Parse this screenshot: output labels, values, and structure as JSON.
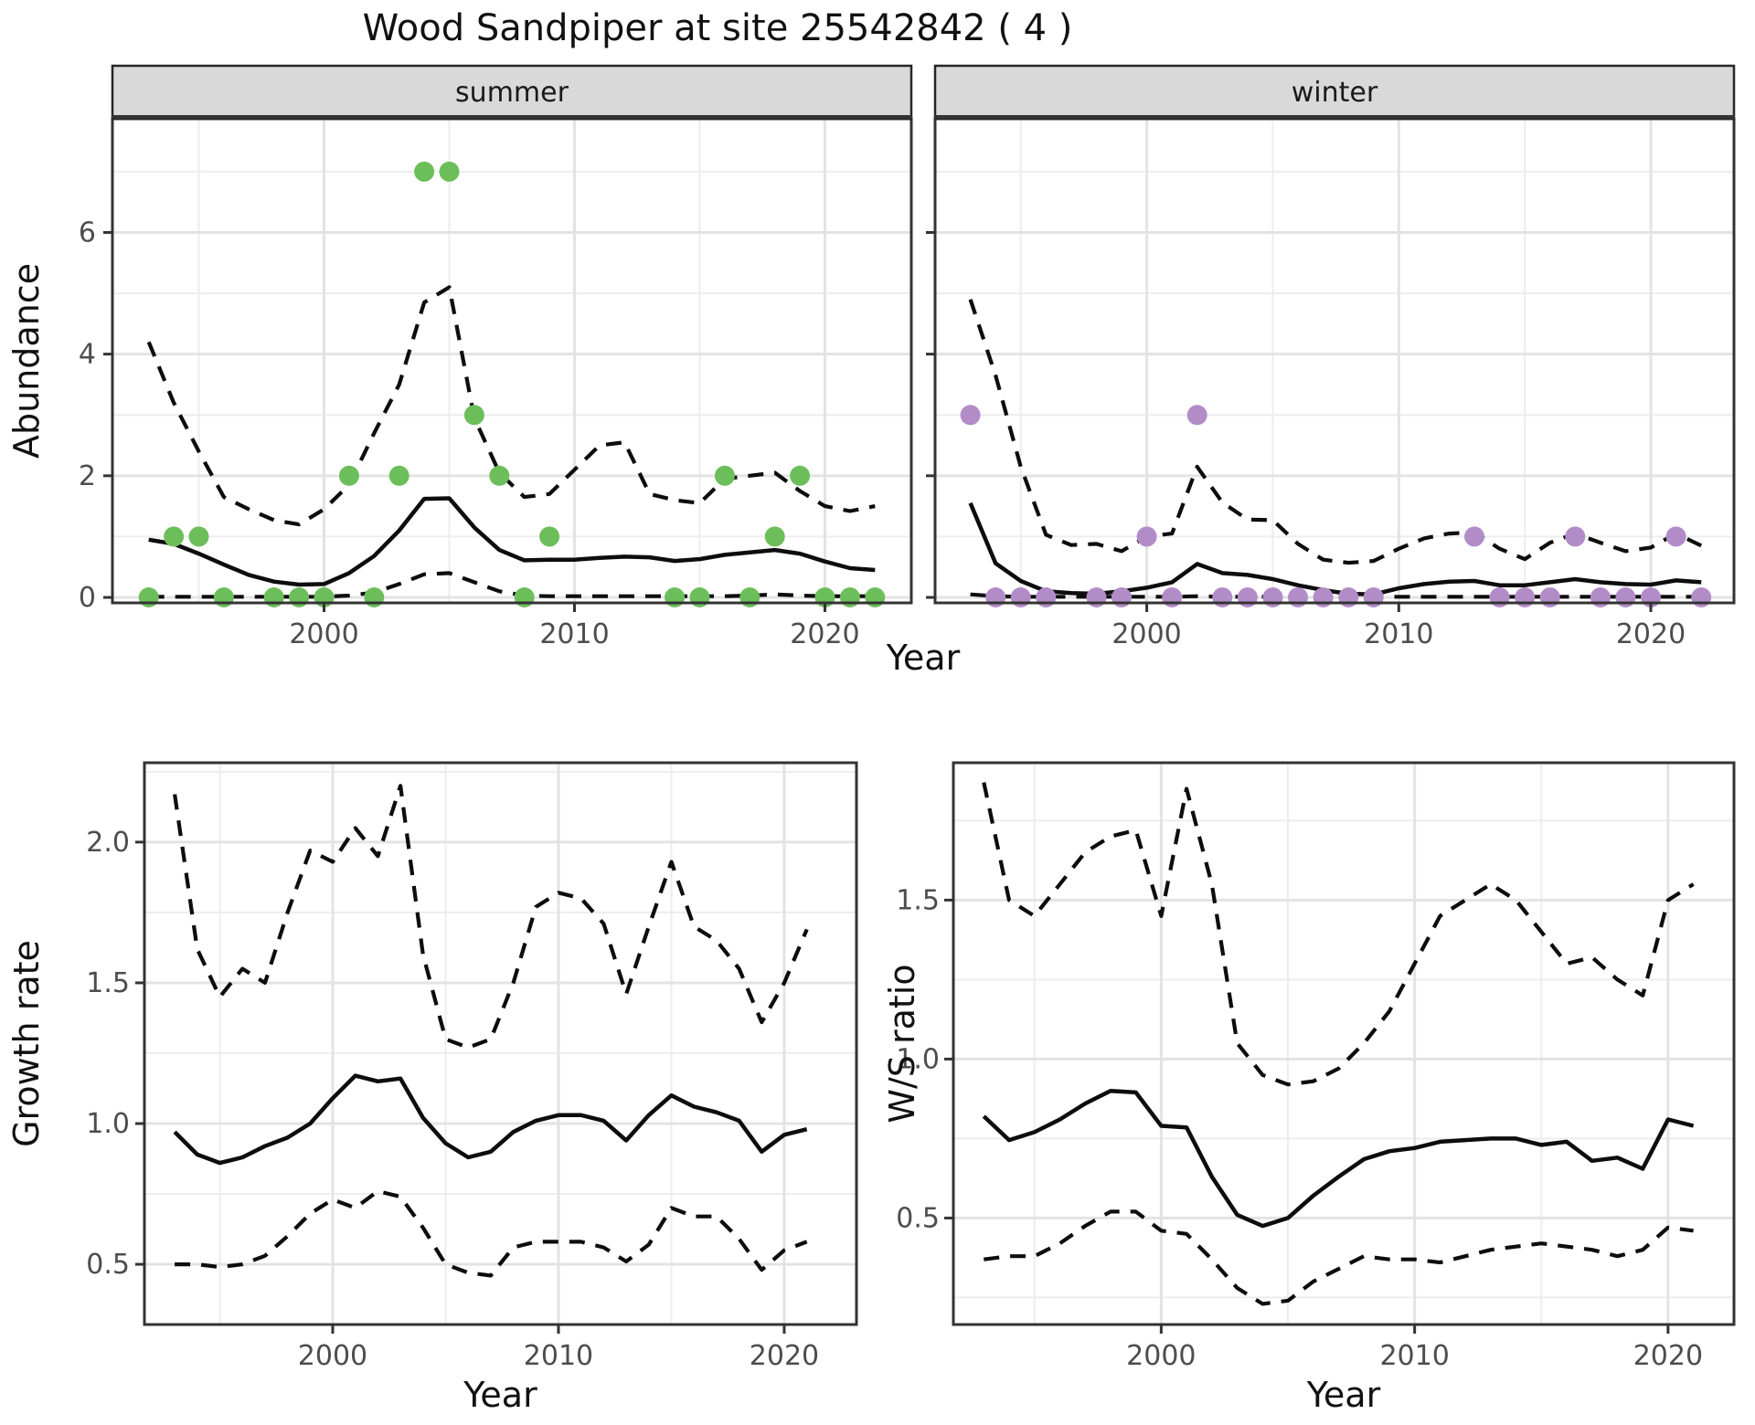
{
  "title": "Wood Sandpiper at site 25542842 ( 4 )",
  "top_row_xlabel": "Year",
  "colors": {
    "summer_points": "#6CBE5B",
    "winter_points": "#B28CC7",
    "line": "#0D0D0D",
    "grid_major": "#E3E3E3",
    "grid_minor": "#EDEDED",
    "strip_bg": "#D9D9D9",
    "strip_border": "#262626",
    "panel_border": "#333333",
    "tick_text": "#4D4D4D",
    "axis_title_text": "#111111"
  },
  "chart_data": [
    {
      "type": "line",
      "facet": "summer",
      "xlabel": "Year",
      "ylabel": "Abundance",
      "x_ticks": [
        2000,
        2010,
        2020
      ],
      "x_tick_labels": [
        "2000",
        "2010",
        "2020"
      ],
      "x_minor": [
        1995,
        2005,
        2015
      ],
      "y_ticks": [
        0,
        2,
        4,
        6
      ],
      "y_tick_labels": [
        "0",
        "2",
        "4",
        "6"
      ],
      "y_minor": [
        1,
        3,
        5,
        7
      ],
      "xlim": [
        1991.55,
        2023.45
      ],
      "ylim": [
        -0.09,
        7.87
      ],
      "x": [
        1993,
        1994,
        1995,
        1996,
        1997,
        1998,
        1999,
        2000,
        2001,
        2002,
        2003,
        2004,
        2005,
        2006,
        2007,
        2008,
        2009,
        2010,
        2011,
        2012,
        2013,
        2014,
        2015,
        2016,
        2017,
        2018,
        2019,
        2020,
        2021,
        2022
      ],
      "series": [
        {
          "name": "median",
          "style": "solid",
          "values": [
            0.95,
            0.88,
            0.72,
            0.54,
            0.37,
            0.26,
            0.21,
            0.22,
            0.4,
            0.68,
            1.1,
            1.62,
            1.63,
            1.15,
            0.78,
            0.61,
            0.62,
            0.62,
            0.65,
            0.67,
            0.66,
            0.6,
            0.63,
            0.7,
            0.74,
            0.78,
            0.72,
            0.59,
            0.48,
            0.45
          ]
        },
        {
          "name": "upper_ci",
          "style": "dashed",
          "values": [
            4.2,
            3.2,
            2.4,
            1.65,
            1.45,
            1.27,
            1.2,
            1.45,
            1.85,
            2.7,
            3.5,
            4.85,
            5.1,
            2.95,
            2.05,
            1.65,
            1.7,
            2.1,
            2.5,
            2.55,
            1.7,
            1.6,
            1.55,
            1.95,
            2.0,
            2.05,
            1.75,
            1.5,
            1.42,
            1.5
          ]
        },
        {
          "name": "lower_ci",
          "style": "dashed",
          "values": [
            0.01,
            0.01,
            0.01,
            0.01,
            0.01,
            0.01,
            0.01,
            0.01,
            0.03,
            0.08,
            0.22,
            0.38,
            0.4,
            0.25,
            0.1,
            0.03,
            0.02,
            0.02,
            0.02,
            0.02,
            0.02,
            0.02,
            0.02,
            0.02,
            0.03,
            0.05,
            0.03,
            0.02,
            0.02,
            0.02
          ]
        }
      ],
      "points": {
        "name": "observed_counts",
        "color_key": "summer_points",
        "xy": [
          [
            1993,
            0
          ],
          [
            1994,
            1
          ],
          [
            1995,
            1
          ],
          [
            1996,
            0
          ],
          [
            1998,
            0
          ],
          [
            1999,
            0
          ],
          [
            2000,
            0
          ],
          [
            2001,
            2
          ],
          [
            2002,
            0
          ],
          [
            2003,
            2
          ],
          [
            2004,
            7
          ],
          [
            2005,
            7
          ],
          [
            2006,
            3
          ],
          [
            2007,
            2
          ],
          [
            2008,
            0
          ],
          [
            2009,
            1
          ],
          [
            2014,
            0
          ],
          [
            2015,
            0
          ],
          [
            2016,
            2
          ],
          [
            2017,
            0
          ],
          [
            2018,
            1
          ],
          [
            2019,
            2
          ],
          [
            2020,
            0
          ],
          [
            2021,
            0
          ],
          [
            2022,
            0
          ]
        ]
      }
    },
    {
      "type": "line",
      "facet": "winter",
      "xlabel": "Year",
      "ylabel": "Abundance",
      "x_ticks": [
        2000,
        2010,
        2020
      ],
      "x_tick_labels": [
        "2000",
        "2010",
        "2020"
      ],
      "x_minor": [
        1995,
        2005,
        2015
      ],
      "y_ticks": [
        0,
        2,
        4,
        6
      ],
      "y_tick_labels": [
        "0",
        "2",
        "4",
        "6"
      ],
      "y_minor": [
        1,
        3,
        5,
        7
      ],
      "xlim": [
        1991.6,
        2023.3
      ],
      "ylim": [
        -0.09,
        7.87
      ],
      "x": [
        1993,
        1994,
        1995,
        1996,
        1997,
        1998,
        1999,
        2000,
        2001,
        2002,
        2003,
        2004,
        2005,
        2006,
        2007,
        2008,
        2009,
        2010,
        2011,
        2012,
        2013,
        2014,
        2015,
        2016,
        2017,
        2018,
        2019,
        2020,
        2021,
        2022
      ],
      "series": [
        {
          "name": "median",
          "style": "solid",
          "values": [
            1.55,
            0.56,
            0.27,
            0.1,
            0.07,
            0.06,
            0.1,
            0.16,
            0.25,
            0.55,
            0.4,
            0.37,
            0.3,
            0.2,
            0.12,
            0.06,
            0.05,
            0.15,
            0.22,
            0.26,
            0.27,
            0.2,
            0.2,
            0.25,
            0.3,
            0.25,
            0.22,
            0.21,
            0.28,
            0.25
          ]
        },
        {
          "name": "upper_ci",
          "style": "dashed",
          "values": [
            4.9,
            3.65,
            2.15,
            1.03,
            0.86,
            0.88,
            0.76,
            1.0,
            1.05,
            2.15,
            1.56,
            1.28,
            1.27,
            0.88,
            0.62,
            0.57,
            0.6,
            0.8,
            0.97,
            1.05,
            1.07,
            0.8,
            0.63,
            0.9,
            1.05,
            0.9,
            0.76,
            0.82,
            1.05,
            0.85
          ]
        },
        {
          "name": "lower_ci",
          "style": "dashed",
          "values": [
            0.05,
            0.02,
            0.01,
            0.01,
            0.01,
            0.01,
            0.01,
            0.01,
            0.01,
            0.02,
            0.01,
            0.01,
            0.01,
            0.01,
            0.01,
            0.01,
            0.01,
            0.01,
            0.01,
            0.01,
            0.01,
            0.01,
            0.01,
            0.01,
            0.01,
            0.01,
            0.01,
            0.01,
            0.01,
            0.01
          ]
        }
      ],
      "points": {
        "name": "observed_counts",
        "color_key": "winter_points",
        "xy": [
          [
            1993,
            3
          ],
          [
            1994,
            0
          ],
          [
            1995,
            0
          ],
          [
            1996,
            0
          ],
          [
            1998,
            0
          ],
          [
            1999,
            0
          ],
          [
            2000,
            1
          ],
          [
            2001,
            0
          ],
          [
            2002,
            3
          ],
          [
            2003,
            0
          ],
          [
            2004,
            0
          ],
          [
            2005,
            0
          ],
          [
            2006,
            0
          ],
          [
            2007,
            0
          ],
          [
            2008,
            0
          ],
          [
            2009,
            0
          ],
          [
            2013,
            1
          ],
          [
            2014,
            0
          ],
          [
            2015,
            0
          ],
          [
            2016,
            0
          ],
          [
            2017,
            1
          ],
          [
            2018,
            0
          ],
          [
            2019,
            0
          ],
          [
            2020,
            0
          ],
          [
            2021,
            1
          ],
          [
            2022,
            0
          ]
        ]
      }
    },
    {
      "type": "line",
      "facet": null,
      "xlabel": "Year",
      "ylabel": "Growth rate",
      "x_ticks": [
        2000,
        2010,
        2020
      ],
      "x_tick_labels": [
        "2000",
        "2010",
        "2020"
      ],
      "x_minor": [
        1995,
        2005,
        2015
      ],
      "y_ticks": [
        0.5,
        1.0,
        1.5,
        2.0
      ],
      "y_tick_labels": [
        "0.5",
        "1.0",
        "1.5",
        "2.0"
      ],
      "y_minor": [
        0.75,
        1.25,
        1.75,
        2.25
      ],
      "xlim": [
        1991.66,
        2023.2
      ],
      "ylim": [
        0.286,
        2.282
      ],
      "x": [
        1993,
        1994,
        1995,
        1996,
        1997,
        1998,
        1999,
        2000,
        2001,
        2002,
        2003,
        2004,
        2005,
        2006,
        2007,
        2008,
        2009,
        2010,
        2011,
        2012,
        2013,
        2014,
        2015,
        2016,
        2017,
        2018,
        2019,
        2020,
        2021
      ],
      "series": [
        {
          "name": "median",
          "style": "solid",
          "values": [
            0.97,
            0.89,
            0.86,
            0.88,
            0.92,
            0.95,
            1.0,
            1.09,
            1.17,
            1.15,
            1.16,
            1.02,
            0.93,
            0.88,
            0.9,
            0.97,
            1.01,
            1.03,
            1.03,
            1.01,
            0.94,
            1.03,
            1.1,
            1.06,
            1.04,
            1.01,
            0.9,
            0.96,
            0.98
          ]
        },
        {
          "name": "upper_ci",
          "style": "dashed",
          "values": [
            2.17,
            1.62,
            1.45,
            1.55,
            1.5,
            1.75,
            1.97,
            1.93,
            2.05,
            1.95,
            2.2,
            1.6,
            1.3,
            1.27,
            1.3,
            1.5,
            1.77,
            1.82,
            1.8,
            1.71,
            1.46,
            1.7,
            1.93,
            1.7,
            1.65,
            1.55,
            1.36,
            1.5,
            1.69
          ]
        },
        {
          "name": "lower_ci",
          "style": "dashed",
          "values": [
            0.5,
            0.5,
            0.49,
            0.5,
            0.53,
            0.6,
            0.68,
            0.73,
            0.7,
            0.76,
            0.74,
            0.63,
            0.5,
            0.47,
            0.46,
            0.56,
            0.58,
            0.58,
            0.58,
            0.56,
            0.51,
            0.57,
            0.7,
            0.67,
            0.67,
            0.59,
            0.48,
            0.55,
            0.58
          ]
        }
      ],
      "points": null
    },
    {
      "type": "line",
      "facet": null,
      "xlabel": "Year",
      "ylabel": "W/S ratio",
      "x_ticks": [
        2000,
        2010,
        2020
      ],
      "x_tick_labels": [
        "2000",
        "2010",
        "2020"
      ],
      "x_minor": [
        1995,
        2005,
        2015
      ],
      "y_ticks": [
        0.5,
        1.0,
        1.5
      ],
      "y_tick_labels": [
        "0.5",
        "1.0",
        "1.5"
      ],
      "y_minor": [
        0.25,
        0.75,
        1.25,
        1.75
      ],
      "xlim": [
        1991.8,
        2022.6
      ],
      "ylim": [
        0.165,
        1.932
      ],
      "x": [
        1993,
        1994,
        1995,
        1996,
        1997,
        1998,
        1999,
        2000,
        2001,
        2002,
        2003,
        2004,
        2005,
        2006,
        2007,
        2008,
        2009,
        2010,
        2011,
        2012,
        2013,
        2014,
        2015,
        2016,
        2017,
        2018,
        2019,
        2020,
        2021
      ],
      "series": [
        {
          "name": "median",
          "style": "solid",
          "values": [
            0.82,
            0.745,
            0.77,
            0.81,
            0.86,
            0.9,
            0.895,
            0.79,
            0.785,
            0.63,
            0.51,
            0.475,
            0.5,
            0.57,
            0.63,
            0.685,
            0.71,
            0.72,
            0.74,
            0.745,
            0.75,
            0.75,
            0.73,
            0.74,
            0.68,
            0.69,
            0.655,
            0.81,
            0.79
          ]
        },
        {
          "name": "upper_ci",
          "style": "dashed",
          "values": [
            1.87,
            1.5,
            1.45,
            1.55,
            1.65,
            1.7,
            1.72,
            1.45,
            1.85,
            1.55,
            1.05,
            0.95,
            0.92,
            0.93,
            0.97,
            1.05,
            1.15,
            1.3,
            1.45,
            1.5,
            1.55,
            1.5,
            1.4,
            1.3,
            1.32,
            1.25,
            1.2,
            1.5,
            1.55
          ]
        },
        {
          "name": "lower_ci",
          "style": "dashed",
          "values": [
            0.37,
            0.38,
            0.38,
            0.42,
            0.475,
            0.52,
            0.52,
            0.46,
            0.45,
            0.37,
            0.28,
            0.23,
            0.24,
            0.3,
            0.34,
            0.38,
            0.37,
            0.37,
            0.36,
            0.38,
            0.4,
            0.41,
            0.42,
            0.41,
            0.4,
            0.38,
            0.4,
            0.47,
            0.46
          ]
        }
      ],
      "points": null
    }
  ]
}
